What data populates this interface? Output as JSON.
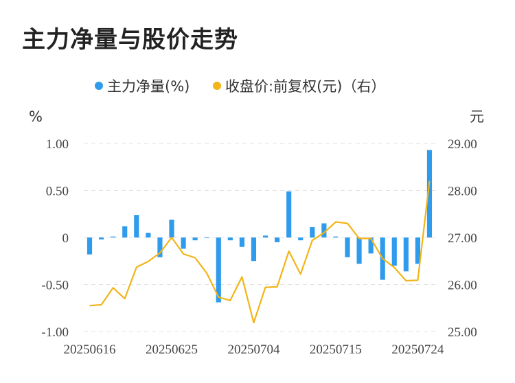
{
  "title": "主力净量与股价走势",
  "colors": {
    "bar": "#2f9bec",
    "line": "#f2b416",
    "grid": "#e2e2e2"
  },
  "chart_data": {
    "type": "bar+line",
    "left_unit": "%",
    "right_unit": "元",
    "legend": [
      "主力净量(%)",
      "收盘价:前复权(元)（右）"
    ],
    "y_left": {
      "min": -1.0,
      "max": 1.0,
      "ticks": [
        1.0,
        0.5,
        0,
        -0.5,
        -1.0
      ],
      "tick_labels": [
        "1.00",
        "0.50",
        "0",
        "-0.50",
        "-1.00"
      ]
    },
    "y_right": {
      "min": 25.0,
      "max": 29.0,
      "ticks": [
        29,
        28,
        27,
        26,
        25
      ],
      "tick_labels": [
        "29.00",
        "28.00",
        "27.00",
        "26.00",
        "25.00"
      ]
    },
    "x_tick_labels": [
      "20250616",
      "20250625",
      "20250704",
      "20250715",
      "20250724"
    ],
    "x_tick_indices": [
      0,
      7,
      14,
      21,
      28
    ],
    "series": [
      {
        "name": "主力净量(%)",
        "type": "bar",
        "values": [
          -0.18,
          -0.02,
          0.01,
          0.12,
          0.24,
          0.05,
          -0.21,
          0.19,
          -0.12,
          -0.03,
          0.0,
          -0.69,
          -0.03,
          -0.1,
          -0.25,
          0.02,
          -0.05,
          0.49,
          -0.03,
          0.11,
          0.15,
          0.01,
          -0.21,
          -0.28,
          -0.17,
          -0.45,
          -0.3,
          -0.36,
          -0.28,
          0.93
        ]
      },
      {
        "name": "收盘价:前复权(元)（右）",
        "type": "line",
        "values": [
          25.55,
          25.57,
          25.93,
          25.7,
          26.37,
          26.49,
          26.67,
          27.0,
          26.65,
          26.57,
          26.24,
          25.73,
          25.66,
          26.16,
          25.19,
          25.94,
          25.95,
          26.71,
          26.22,
          26.94,
          27.1,
          27.33,
          27.3,
          26.98,
          26.98,
          26.55,
          26.36,
          26.08,
          26.09,
          28.2
        ]
      }
    ]
  }
}
